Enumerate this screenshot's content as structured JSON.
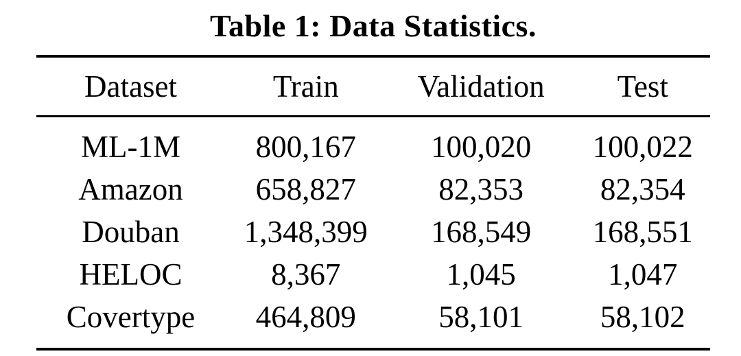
{
  "caption": "Table 1: Data Statistics.",
  "colors": {
    "text": "#000000",
    "background": "#ffffff",
    "rule": "#000000"
  },
  "table": {
    "columns": [
      "Dataset",
      "Train",
      "Validation",
      "Test"
    ],
    "rows": [
      [
        "ML-1M",
        "800,167",
        "100,020",
        "100,022"
      ],
      [
        "Amazon",
        "658,827",
        "82,353",
        "82,354"
      ],
      [
        "Douban",
        "1,348,399",
        "168,549",
        "168,551"
      ],
      [
        "HELOC",
        "8,367",
        "1,045",
        "1,047"
      ],
      [
        "Covertype",
        "464,809",
        "58,101",
        "58,102"
      ]
    ]
  },
  "chart_data": {
    "type": "table",
    "title": "Table 1: Data Statistics.",
    "columns": [
      "Dataset",
      "Train",
      "Validation",
      "Test"
    ],
    "rows": [
      {
        "dataset": "ML-1M",
        "train": 800167,
        "validation": 100020,
        "test": 100022
      },
      {
        "dataset": "Amazon",
        "train": 658827,
        "validation": 82353,
        "test": 82354
      },
      {
        "dataset": "Douban",
        "train": 1348399,
        "validation": 168549,
        "test": 168551
      },
      {
        "dataset": "HELOC",
        "train": 8367,
        "validation": 1045,
        "test": 1047
      },
      {
        "dataset": "Covertype",
        "train": 464809,
        "validation": 58101,
        "test": 58102
      }
    ]
  }
}
